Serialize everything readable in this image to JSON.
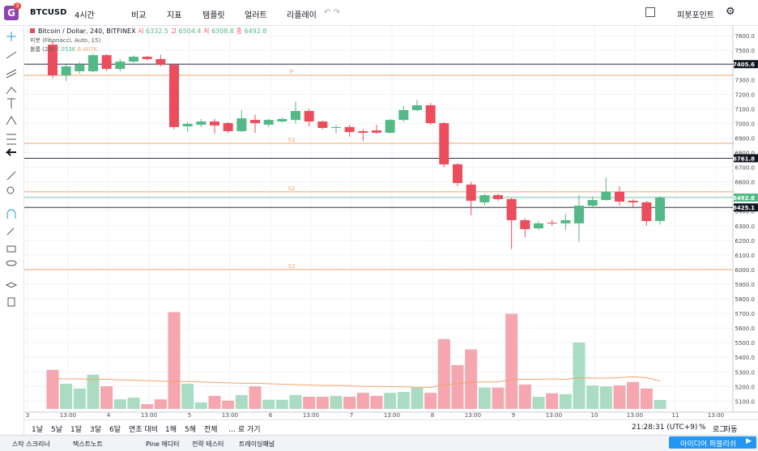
{
  "toolbar": {
    "logo": "G",
    "badge": "3",
    "symbol": "BTCUSD",
    "interval": "4시간",
    "compare": "비교",
    "indicators": "지표",
    "templates": "템플릿",
    "alert": "얼러트",
    "replay": "리플레이",
    "pivot": "피봇포인트"
  },
  "chart_data": {
    "type": "candlestick",
    "title": "Bitcoin / Dollar, 240, BITFINEX",
    "ohlc_labels": [
      "시",
      "고",
      "저",
      "종"
    ],
    "indicators": {
      "pivot": "피봇 (Fibonacci, Auto, 15)",
      "volume": "볼륨 (20)"
    },
    "open": [
      7539,
      7329,
      7357,
      7357,
      7467,
      7373,
      7423,
      7456,
      7440,
      7401,
      6980,
      6991,
      7013,
      7002,
      6947,
      7024,
      6991,
      7013,
      7024,
      7085,
      7013,
      6969,
      6975,
      6947,
      6952,
      6936,
      7024,
      7091,
      7124,
      7002,
      6720,
      6581,
      6460,
      6509,
      6482,
      6338,
      6282,
      6321,
      6316,
      6316,
      6437,
      6476,
      6532,
      6471,
      6460,
      6332.5
    ],
    "high": [
      7560,
      7405,
      7420,
      7480,
      7475,
      7440,
      7465,
      7462,
      7470,
      7410,
      7010,
      7030,
      7030,
      7010,
      7090,
      7060,
      7030,
      7040,
      7150,
      7100,
      7020,
      6990,
      6990,
      6960,
      6990,
      7030,
      7120,
      7160,
      7140,
      7010,
      6730,
      6600,
      6520,
      6520,
      6490,
      6350,
      6330,
      6340,
      6380,
      6510,
      6500,
      6630,
      6570,
      6480,
      6470,
      6504.4
    ],
    "low": [
      7310,
      7290,
      7340,
      7350,
      7360,
      7355,
      7415,
      7430,
      7390,
      6960,
      6940,
      6975,
      6930,
      6935,
      6940,
      6935,
      6975,
      7005,
      7000,
      6980,
      6960,
      6930,
      6910,
      6880,
      6930,
      6930,
      7010,
      7085,
      6990,
      6700,
      6570,
      6370,
      6440,
      6470,
      6140,
      6220,
      6270,
      6300,
      6270,
      6190,
      6420,
      6470,
      6440,
      6420,
      6300,
      6308.8
    ],
    "close": [
      7329,
      7390,
      7401,
      7467,
      7373,
      7423,
      7456,
      7440,
      7401,
      6975,
      6997,
      7013,
      6986,
      6947,
      7035,
      7002,
      7024,
      7030,
      7085,
      7013,
      6969,
      6975,
      6941,
      6936,
      6936,
      7024,
      7091,
      7124,
      7002,
      6720,
      6592,
      6471,
      6509,
      6482,
      6338,
      6277,
      6316,
      6316,
      6338,
      6437,
      6476,
      6532,
      6465,
      6460,
      6332,
      6492.8
    ],
    "up_color": "#53b987",
    "down_color": "#eb4d5c",
    "volume": {
      "values": [
        9.0,
        5.8,
        4.7,
        7.9,
        5.2,
        2.2,
        2.6,
        1.1,
        2.2,
        22.3,
        5.8,
        1.5,
        3.0,
        1.9,
        3.2,
        5.2,
        2.1,
        2.1,
        3.2,
        2.8,
        2.8,
        3.0,
        2.8,
        3.7,
        3.0,
        3.7,
        3.9,
        4.9,
        3.7,
        16.1,
        10.1,
        13.7,
        4.9,
        4.9,
        21.9,
        5.6,
        2.8,
        3.6,
        3.4,
        15.3,
        5.4,
        5.2,
        5.4,
        6.2,
        4.7,
        2.053
      ],
      "ma": [
        7.0,
        6.9,
        6.9,
        6.8,
        6.8,
        6.7,
        6.6,
        6.5,
        6.4,
        6.3,
        6.3,
        6.2,
        6.1,
        6.0,
        5.9,
        5.9,
        5.8,
        5.7,
        5.6,
        5.5,
        5.4,
        5.4,
        5.3,
        5.2,
        5.2,
        5.1,
        5.1,
        5.0,
        5.0,
        5.5,
        5.8,
        6.2,
        6.2,
        6.2,
        6.8,
        6.8,
        6.8,
        6.9,
        6.8,
        7.2,
        7.1,
        7.1,
        7.2,
        7.4,
        7.2,
        6.407
      ],
      "ylim": [
        0,
        25
      ],
      "up_color": "#a9dcc3",
      "down_color": "#f5a6ae",
      "ma_color": "#f5a36a",
      "legend": [
        {
          "value": 2.053,
          "label": "2.053K"
        },
        {
          "value": 6.407,
          "label": "6.407K"
        }
      ]
    },
    "pivots": [
      {
        "label": "P",
        "value": 7329
      },
      {
        "label": "S1",
        "value": 6864
      },
      {
        "label": "S2",
        "value": 6532
      },
      {
        "label": "S3",
        "value": 6000
      }
    ],
    "pivot_color": "#f0a46c",
    "price_lines": [
      {
        "value": 7405.6,
        "color": "#131722"
      },
      {
        "value": 6761.8,
        "color": "#131722"
      },
      {
        "value": 6492.8,
        "color": "#53b987"
      },
      {
        "value": 6425.1,
        "color": "#131722"
      }
    ],
    "xlim": [
      -2.1,
      50.4
    ],
    "xticks": [
      {
        "value": -1.86,
        "label": "3"
      },
      {
        "value": 1.14,
        "label": "13:00"
      },
      {
        "value": 4.14,
        "label": "4"
      },
      {
        "value": 7.14,
        "label": "13:00"
      },
      {
        "value": 10.14,
        "label": "5"
      },
      {
        "value": 13.14,
        "label": "13:00"
      },
      {
        "value": 16.14,
        "label": "6"
      },
      {
        "value": 19.14,
        "label": "13:00"
      },
      {
        "value": 22.14,
        "label": "7"
      },
      {
        "value": 25.14,
        "label": "13:00"
      },
      {
        "value": 28.14,
        "label": "8"
      },
      {
        "value": 31.14,
        "label": "13:00"
      },
      {
        "value": 34.14,
        "label": "9"
      },
      {
        "value": 37.14,
        "label": "13:00"
      },
      {
        "value": 40.14,
        "label": "10"
      },
      {
        "value": 43.14,
        "label": "13:00"
      },
      {
        "value": 46.14,
        "label": "11"
      },
      {
        "value": 49.14,
        "label": "13:00"
      }
    ],
    "ylim": [
      5030,
      7645
    ],
    "yticks": [
      {
        "value": 5100,
        "label": "5100.0"
      },
      {
        "value": 5200,
        "label": "5200.0"
      },
      {
        "value": 5300,
        "label": "5300.0"
      },
      {
        "value": 5400,
        "label": "5400.0"
      },
      {
        "value": 5500,
        "label": "5500.0"
      },
      {
        "value": 5600,
        "label": "5600.0"
      },
      {
        "value": 5700,
        "label": "5700.0"
      },
      {
        "value": 5800,
        "label": "5800.0"
      },
      {
        "value": 5900,
        "label": "5900.0"
      },
      {
        "value": 6000,
        "label": "6000.0"
      },
      {
        "value": 6100,
        "label": "6100.0"
      },
      {
        "value": 6200,
        "label": "6200.0"
      },
      {
        "value": 6300,
        "label": "6300.0"
      },
      {
        "value": 6400,
        "label": "6400.0"
      },
      {
        "value": 6500,
        "label": "6500.0"
      },
      {
        "value": 6600,
        "label": "6600.0"
      },
      {
        "value": 6700,
        "label": "6700.0"
      },
      {
        "value": 6800,
        "label": "6800.0"
      },
      {
        "value": 6900,
        "label": "6900.0"
      },
      {
        "value": 7000,
        "label": "7000.0"
      },
      {
        "value": 7100,
        "label": "7100.0"
      },
      {
        "value": 7200,
        "label": "7200.0"
      },
      {
        "value": 7300,
        "label": "7300.0"
      },
      {
        "value": 7400,
        "label": "7400.0"
      },
      {
        "value": 7500,
        "label": "7500.0"
      },
      {
        "value": 7600,
        "label": "7600.0"
      }
    ],
    "grid": true
  },
  "range_bar": {
    "ranges": [
      "1날",
      "5날",
      "1달",
      "3달",
      "6달",
      "연초 대비",
      "1해",
      "5해",
      "전체"
    ],
    "goto": "… 로 가기",
    "clock": "21:28:31 (UTC+9)",
    "percent": "%",
    "log": "로그",
    "auto": "자동"
  },
  "bottom_tabs": {
    "tabs": [
      "스탁 스크리너",
      "텍스트노트",
      "Pine 에디터",
      "전략 테스터",
      "트레이딩패널"
    ],
    "publish": "아이디어 퍼블리쉬"
  }
}
